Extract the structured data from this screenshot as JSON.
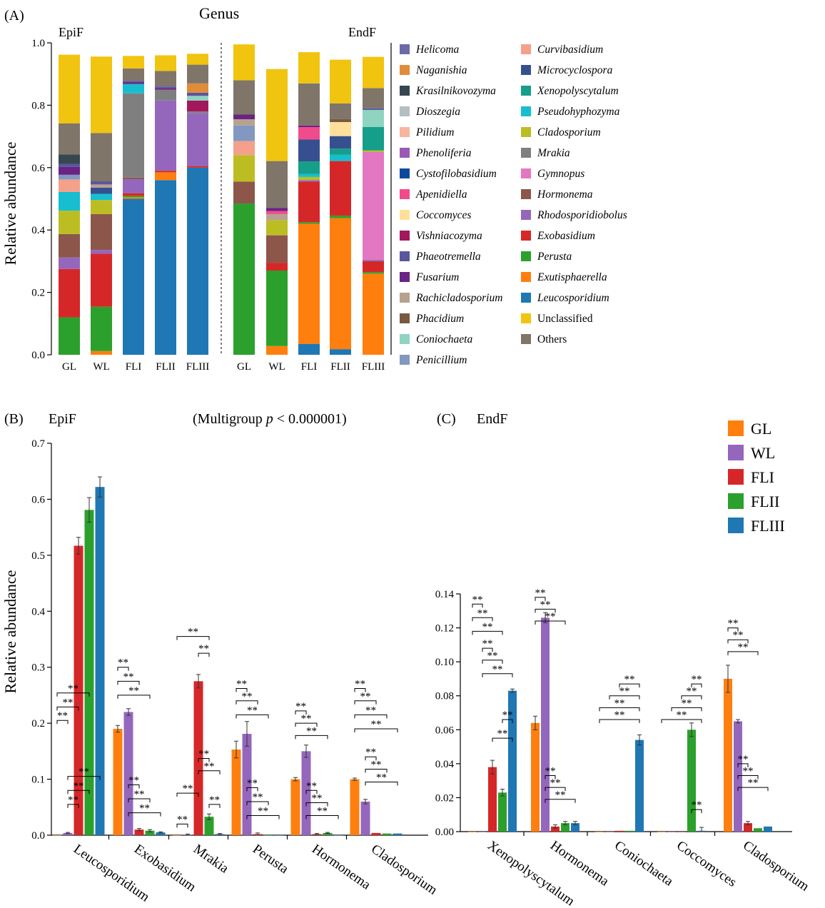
{
  "colors": {
    "GL": "#ff7f0e",
    "WL": "#9467bd",
    "FLI": "#d62728",
    "FLII": "#2ca02c",
    "FLIII": "#1f77b4",
    "axis": "#000000"
  },
  "chart_data": [
    {
      "type": "stacked-bar",
      "panel": "(A)",
      "title": "Genus",
      "group_labels": [
        "EpiF",
        "EndF"
      ],
      "ylabel": "Relative abundance",
      "ylim": [
        0,
        1.0
      ],
      "yticks": [
        "0.0",
        "0.2",
        "0.4",
        "0.6",
        "0.8",
        "1.0"
      ],
      "categories": [
        "GL",
        "WL",
        "FLI",
        "FLII",
        "FLIII",
        "GL",
        "WL",
        "FLI",
        "FLII",
        "FLIII"
      ],
      "series": [
        {
          "name": "Leucosporidium",
          "color": "#1f77b4",
          "values": [
            0,
            0,
            0.5,
            0.56,
            0.6,
            0,
            0,
            0.035,
            0.018,
            0
          ]
        },
        {
          "name": "Exutisphaerella",
          "color": "#ff7f0e",
          "values": [
            0,
            0.012,
            0.005,
            0.025,
            0,
            0,
            0.028,
            0.385,
            0.42,
            0.26
          ]
        },
        {
          "name": "Perusta",
          "color": "#2ca02c",
          "values": [
            0.12,
            0.142,
            0.005,
            0,
            0,
            0.485,
            0.242,
            0.005,
            0.008,
            0.005
          ]
        },
        {
          "name": "Exobasidium",
          "color": "#d62728",
          "values": [
            0.155,
            0.17,
            0.008,
            0.005,
            0.005,
            0,
            0.025,
            0.13,
            0.175,
            0.035
          ]
        },
        {
          "name": "Rhodosporidiobolus",
          "color": "#9467bd",
          "values": [
            0.037,
            0.012,
            0.045,
            0.225,
            0.17,
            0,
            0,
            0.005,
            0,
            0.005
          ]
        },
        {
          "name": "Hormonema",
          "color": "#8c564b",
          "values": [
            0.075,
            0.115,
            0.005,
            0,
            0,
            0.07,
            0.088,
            0,
            0,
            0
          ]
        },
        {
          "name": "Gymnopus",
          "color": "#e377c2",
          "values": [
            0,
            0,
            0,
            0,
            0,
            0,
            0,
            0,
            0,
            0.345
          ]
        },
        {
          "name": "Mrakia",
          "color": "#7f7f7f",
          "values": [
            0,
            0,
            0.27,
            0.035,
            0.005,
            0,
            0,
            0,
            0,
            0
          ]
        },
        {
          "name": "Cladosporium",
          "color": "#bcbd22",
          "values": [
            0.075,
            0.045,
            0,
            0,
            0,
            0.085,
            0.048,
            0.01,
            0,
            0.005
          ]
        },
        {
          "name": "Pseudohyphozyma",
          "color": "#17becf",
          "values": [
            0.06,
            0.02,
            0.03,
            0,
            0,
            0,
            0,
            0.01,
            0.02,
            0
          ]
        },
        {
          "name": "Xenopolyscytalum",
          "color": "#159e8a",
          "values": [
            0,
            0,
            0,
            0,
            0,
            0,
            0,
            0.04,
            0.02,
            0.075
          ]
        },
        {
          "name": "Microcyclospora",
          "color": "#36508f",
          "values": [
            0,
            0.02,
            0,
            0,
            0,
            0,
            0,
            0.07,
            0.04,
            0
          ]
        },
        {
          "name": "Curvibasidium",
          "color": "#f4a08a",
          "values": [
            0.04,
            0,
            0,
            0,
            0,
            0.045,
            0,
            0,
            0,
            0
          ]
        },
        {
          "name": "Penicillium",
          "color": "#8298c0",
          "values": [
            0.015,
            0,
            0,
            0,
            0,
            0.05,
            0,
            0,
            0,
            0
          ]
        },
        {
          "name": "Rachicladosporium",
          "color": "#b7a28e",
          "values": [
            0,
            0.01,
            0,
            0,
            0,
            0.02,
            0.02,
            0,
            0,
            0
          ]
        },
        {
          "name": "Vishniacozyma",
          "color": "#a2195b",
          "values": [
            0,
            0,
            0,
            0,
            0.035,
            0,
            0,
            0,
            0,
            0
          ]
        },
        {
          "name": "Coccomyces",
          "color": "#ffdf9a",
          "values": [
            0,
            0,
            0,
            0,
            0,
            0,
            0,
            0,
            0.045,
            0
          ]
        },
        {
          "name": "Apenidiella",
          "color": "#f04c8c",
          "values": [
            0,
            0,
            0,
            0,
            0,
            0,
            0.01,
            0.04,
            0,
            0
          ]
        },
        {
          "name": "Coniochaeta",
          "color": "#8fd4c1",
          "values": [
            0,
            0,
            0,
            0,
            0.015,
            0,
            0,
            0,
            0,
            0.055
          ]
        },
        {
          "name": "Fusarium",
          "color": "#6a2383",
          "values": [
            0.025,
            0,
            0.005,
            0.005,
            0,
            0.015,
            0.01,
            0.005,
            0,
            0
          ]
        },
        {
          "name": "Phaeotremella",
          "color": "#5b55a0",
          "values": [
            0.01,
            0.01,
            0.005,
            0.005,
            0.01,
            0,
            0,
            0,
            0,
            0.005
          ]
        },
        {
          "name": "Krasilnikovozyma",
          "color": "#37474f",
          "values": [
            0.03,
            0,
            0,
            0,
            0,
            0,
            0,
            0,
            0,
            0
          ]
        },
        {
          "name": "Naganishia",
          "color": "#e08c3a",
          "values": [
            0,
            0,
            0,
            0,
            0.03,
            0,
            0,
            0,
            0,
            0
          ]
        },
        {
          "name": "Phacidium",
          "color": "#7a5841",
          "values": [
            0,
            0,
            0,
            0,
            0,
            0,
            0,
            0,
            0.01,
            0
          ]
        },
        {
          "name": "Others",
          "color": "#7f7568",
          "values": [
            0.1,
            0.155,
            0.04,
            0.05,
            0.06,
            0.11,
            0.15,
            0.135,
            0.05,
            0.065
          ]
        },
        {
          "name": "Unclassified",
          "color": "#f1c40f",
          "values": [
            0.22,
            0.245,
            0.04,
            0.05,
            0.035,
            0.115,
            0.295,
            0.1,
            0.14,
            0.1
          ]
        }
      ],
      "legend_col1": [
        "Helicoma",
        "Naganishia",
        "Krasilnikovozyma",
        "Dioszegia",
        "Pilidium",
        "Phenoliferia",
        "Cystofilobasidium",
        "Apenidiella",
        "Coccomyces",
        "Vishniacozyma",
        "Phaeotremella",
        "Fusarium",
        "Rachicladosporium",
        "Phacidium",
        "Coniochaeta",
        "Penicillium"
      ],
      "legend_col1_colors": [
        "#6c6aa8",
        "#e08c3a",
        "#37474f",
        "#b5bec0",
        "#f7b5a0",
        "#9b59b6",
        "#0d4a9e",
        "#f04c8c",
        "#ffdf9a",
        "#a2195b",
        "#5b55a0",
        "#6a2383",
        "#b7a28e",
        "#7a5841",
        "#8fd4c1",
        "#8298c0"
      ],
      "legend_col2": [
        "Curvibasidium",
        "Microcyclospora",
        "Xenopolyscytalum",
        "Pseudohyphozyma",
        "Cladosporium",
        "Mrakia",
        "Gymnopus",
        "Hormonema",
        "Rhodosporidiobolus",
        "Exobasidium",
        "Perusta",
        "Exutisphaerella",
        "Leucosporidium",
        "Unclassified",
        "Others"
      ],
      "legend_col2_colors": [
        "#f4a08a",
        "#36508f",
        "#159e8a",
        "#17becf",
        "#bcbd22",
        "#7f7f7f",
        "#e377c2",
        "#8c564b",
        "#9467bd",
        "#d62728",
        "#2ca02c",
        "#ff7f0e",
        "#1f77b4",
        "#f1c40f",
        "#7f7568"
      ],
      "legend_italic_count_col2": 13
    },
    {
      "type": "bar",
      "panel": "(B)",
      "title": "EpiF",
      "note_prefix": "(Multigroup ",
      "note_p": "p",
      "note_suffix": " < 0.000001)",
      "ylabel": "Relative abundance",
      "ylim": [
        0,
        0.7
      ],
      "yticks": [
        "0.0",
        "0.1",
        "0.2",
        "0.3",
        "0.4",
        "0.5",
        "0.6",
        "0.7"
      ],
      "categories": [
        "Leucosporidium",
        "Exobasidium",
        "Mrakia",
        "Perusta",
        "Hormonema",
        "Cladosporium"
      ],
      "series": [
        {
          "name": "GL",
          "values": [
            0.0,
            0.19,
            0.0,
            0.153,
            0.1,
            0.1
          ],
          "errors": [
            0.0,
            0.006,
            0.0,
            0.015,
            0.003,
            0.002
          ]
        },
        {
          "name": "WL",
          "values": [
            0.004,
            0.22,
            0.001,
            0.181,
            0.15,
            0.06
          ],
          "errors": [
            0.001,
            0.006,
            0.001,
            0.022,
            0.011,
            0.004
          ]
        },
        {
          "name": "FLI",
          "values": [
            0.517,
            0.01,
            0.275,
            0.002,
            0.002,
            0.004
          ],
          "errors": [
            0.015,
            0.002,
            0.012,
            0.002,
            0.001,
            0.0
          ]
        },
        {
          "name": "FLII",
          "values": [
            0.581,
            0.008,
            0.033,
            0.0,
            0.004,
            0.003
          ],
          "errors": [
            0.022,
            0.002,
            0.005,
            0.0,
            0.001,
            0.0
          ]
        },
        {
          "name": "FLIII",
          "values": [
            0.622,
            0.005,
            0.002,
            0.0,
            0.0,
            0.003
          ],
          "errors": [
            0.018,
            0.001,
            0.001,
            0.0,
            0.0,
            0.0
          ]
        }
      ],
      "sig_label": "**"
    },
    {
      "type": "bar",
      "panel": "(C)",
      "title": "EndF",
      "ylabel": "",
      "ylim": [
        0,
        0.14
      ],
      "yticks": [
        "0.00",
        "0.02",
        "0.04",
        "0.06",
        "0.08",
        "0.10",
        "0.12",
        "0.14"
      ],
      "categories": [
        "Xenopolyscytalum",
        "Hormonema",
        "Coniochaeta",
        "Coccomyces",
        "Cladosporium"
      ],
      "series": [
        {
          "name": "GL",
          "values": [
            0.0,
            0.064,
            0.0,
            0.0,
            0.09
          ],
          "errors": [
            0.0,
            0.004,
            0.0,
            0.0,
            0.008
          ]
        },
        {
          "name": "WL",
          "values": [
            0.0,
            0.126,
            0.0,
            0.0,
            0.065
          ],
          "errors": [
            0.0,
            0.003,
            0.0,
            0.0,
            0.001
          ]
        },
        {
          "name": "FLI",
          "values": [
            0.038,
            0.003,
            0.0005,
            0.0,
            0.005
          ],
          "errors": [
            0.004,
            0.001,
            0.0,
            0.0,
            0.001
          ]
        },
        {
          "name": "FLII",
          "values": [
            0.023,
            0.005,
            0.0005,
            0.06,
            0.002
          ],
          "errors": [
            0.002,
            0.001,
            0.0,
            0.004,
            0.0
          ]
        },
        {
          "name": "FLIII",
          "values": [
            0.083,
            0.005,
            0.054,
            0.0005,
            0.003
          ],
          "errors": [
            0.001,
            0.001,
            0.003,
            0.002,
            0.0
          ]
        }
      ],
      "legend": [
        "GL",
        "WL",
        "FLI",
        "FLII",
        "FLIII"
      ],
      "sig_label": "**"
    }
  ]
}
